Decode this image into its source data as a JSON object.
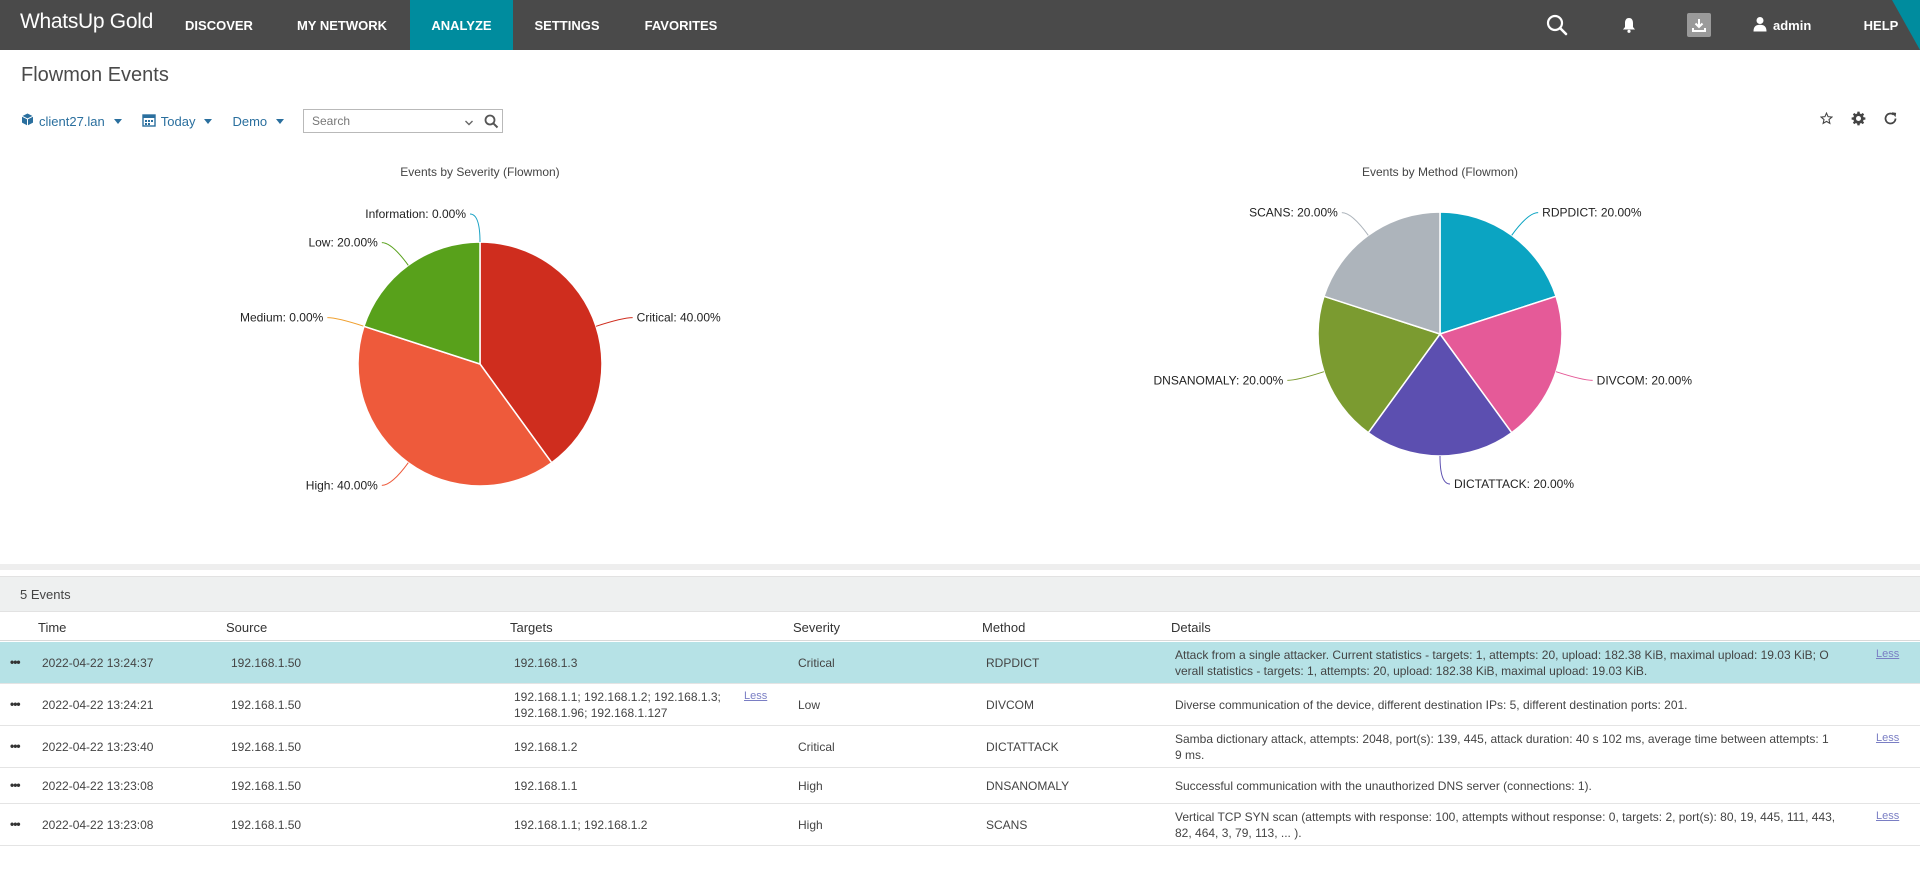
{
  "nav": {
    "logo": "WhatsUp Gold",
    "items": [
      {
        "label": "DISCOVER"
      },
      {
        "label": "MY NETWORK"
      },
      {
        "label": "ANALYZE"
      },
      {
        "label": "SETTINGS"
      },
      {
        "label": "FAVORITES"
      }
    ],
    "user": "admin",
    "help": "HELP",
    "icons": [
      "search-icon",
      "bell-icon",
      "download-icon",
      "user-icon"
    ]
  },
  "page": {
    "title": "Flowmon Events",
    "filters": {
      "device": "client27.lan",
      "date": "Today",
      "group": "Demo"
    },
    "search": {
      "placeholder": "Search"
    },
    "tools": [
      "star-icon",
      "gear-icon",
      "refresh-icon"
    ]
  },
  "chart_data": [
    {
      "type": "pie",
      "title": "Events by Severity (Flowmon)",
      "slices": [
        {
          "label": "Critical: 40.00%",
          "name": "Critical",
          "value": 40.0,
          "color": "#cf2d1e"
        },
        {
          "label": "High: 40.00%",
          "name": "High",
          "value": 40.0,
          "color": "#ee5a3b"
        },
        {
          "label": "Medium: 0.00%",
          "name": "Medium",
          "value": 0.0,
          "color": "#f0a030"
        },
        {
          "label": "Low: 20.00%",
          "name": "Low",
          "value": 20.0,
          "color": "#58a11b"
        },
        {
          "label": "Information: 0.00%",
          "name": "Information",
          "value": 0.0,
          "color": "#1aa2c4"
        }
      ]
    },
    {
      "type": "pie",
      "title": "Events by Method (Flowmon)",
      "slices": [
        {
          "label": "RDPDICT: 20.00%",
          "name": "RDPDICT",
          "value": 20.0,
          "color": "#0ba4c2"
        },
        {
          "label": "DIVCOM: 20.00%",
          "name": "DIVCOM",
          "value": 20.0,
          "color": "#e55a98"
        },
        {
          "label": "DICTATTACK: 20.00%",
          "name": "DICTATTACK",
          "value": 20.0,
          "color": "#5c4fb0"
        },
        {
          "label": "DNSANOMALY: 20.00%",
          "name": "DNSANOMALY",
          "value": 20.0,
          "color": "#7b9b30"
        },
        {
          "label": "SCANS: 20.00%",
          "name": "SCANS",
          "value": 20.0,
          "color": "#adb4bb"
        }
      ]
    }
  ],
  "table": {
    "count_label": "5 Events",
    "columns": [
      "Time",
      "Source",
      "Targets",
      "Severity",
      "Method",
      "Details"
    ],
    "rows": [
      {
        "time": "2022-04-22 13:24:37",
        "source": "192.168.1.50",
        "targets": [
          "192.168.1.3"
        ],
        "severity": "Critical",
        "method": "RDPDICT",
        "details": [
          "Attack from a single attacker. Current statistics - targets: 1, attempts: 20, upload: 182.38 KiB, maximal upload: 19.03 KiB; O",
          "verall statistics - targets: 1, attempts: 20, upload: 182.38 KiB, maximal upload: 19.03 KiB."
        ],
        "details_less": "Less",
        "selected": true
      },
      {
        "time": "2022-04-22 13:24:21",
        "source": "192.168.1.50",
        "targets": [
          "192.168.1.1; 192.168.1.2; 192.168.1.3;",
          "192.168.1.96; 192.168.1.127"
        ],
        "targets_less": "Less",
        "severity": "Low",
        "method": "DIVCOM",
        "details": [
          "Diverse communication of the device, different destination IPs: 5, different destination ports: 201."
        ]
      },
      {
        "time": "2022-04-22 13:23:40",
        "source": "192.168.1.50",
        "targets": [
          "192.168.1.2"
        ],
        "severity": "Critical",
        "method": "DICTATTACK",
        "details": [
          "Samba dictionary attack, attempts: 2048, port(s): 139, 445, attack duration: 40 s 102 ms, average time between attempts: 1",
          "9 ms."
        ],
        "details_less": "Less"
      },
      {
        "time": "2022-04-22 13:23:08",
        "source": "192.168.1.50",
        "targets": [
          "192.168.1.1"
        ],
        "severity": "High",
        "method": "DNSANOMALY",
        "details": [
          "Successful communication with the unauthorized DNS server (connections: 1)."
        ]
      },
      {
        "time": "2022-04-22 13:23:08",
        "source": "192.168.1.50",
        "targets": [
          "192.168.1.1; 192.168.1.2"
        ],
        "severity": "High",
        "method": "SCANS",
        "details": [
          "Vertical TCP SYN scan (attempts with response: 100, attempts without response: 0, targets: 2, port(s): 80, 19, 445, 111, 443,",
          "82, 464, 3, 79, 113, ... )."
        ],
        "details_less": "Less"
      }
    ]
  }
}
